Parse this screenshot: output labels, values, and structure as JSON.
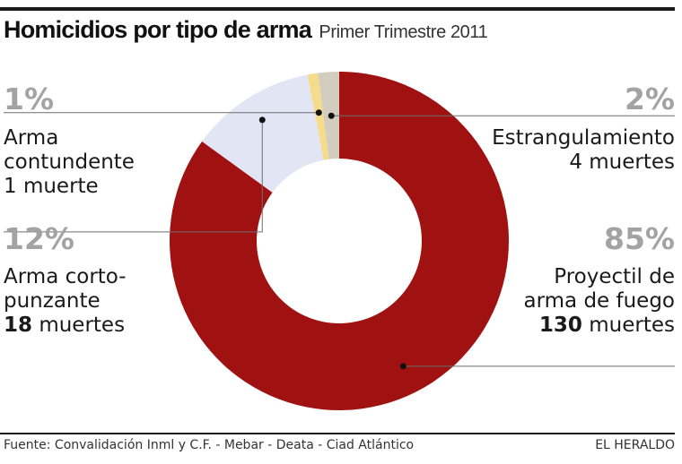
{
  "title": "Homicidios por tipo de arma",
  "subtitle": "Primer Trimestre 2011",
  "chart_data": {
    "type": "pie",
    "donut": true,
    "slices": [
      {
        "key": "proyectil",
        "percent": 85,
        "value": 130,
        "color": "#a01212",
        "label_lines": [
          "Proyectil de",
          "arma de fuego"
        ],
        "count_prefix": "130",
        "count_suffix": " muertes"
      },
      {
        "key": "corto",
        "percent": 12,
        "value": 18,
        "color": "#e2e5f3",
        "label_lines": [
          "Arma corto-",
          "punzante"
        ],
        "count_prefix": "18",
        "count_suffix": " muertes"
      },
      {
        "key": "contundente",
        "percent": 1,
        "value": 1,
        "color": "#f5dc8c",
        "label_lines": [
          "Arma",
          "contundente"
        ],
        "count_text": "1 muerte"
      },
      {
        "key": "estrang",
        "percent": 2,
        "value": 4,
        "color": "#d3cdbf",
        "label_lines": [
          "Estrangulamiento"
        ],
        "count_text": "4 muertes"
      }
    ],
    "percent_labels": {
      "proyectil": "85%",
      "corto": "12%",
      "contundente": "1%",
      "estrang": "2%"
    }
  },
  "footer": {
    "source": "Fuente: Convalidación Inml y C.F. - Mebar - Deata - Ciad Atlántico",
    "brand": "EL HERALDO"
  }
}
